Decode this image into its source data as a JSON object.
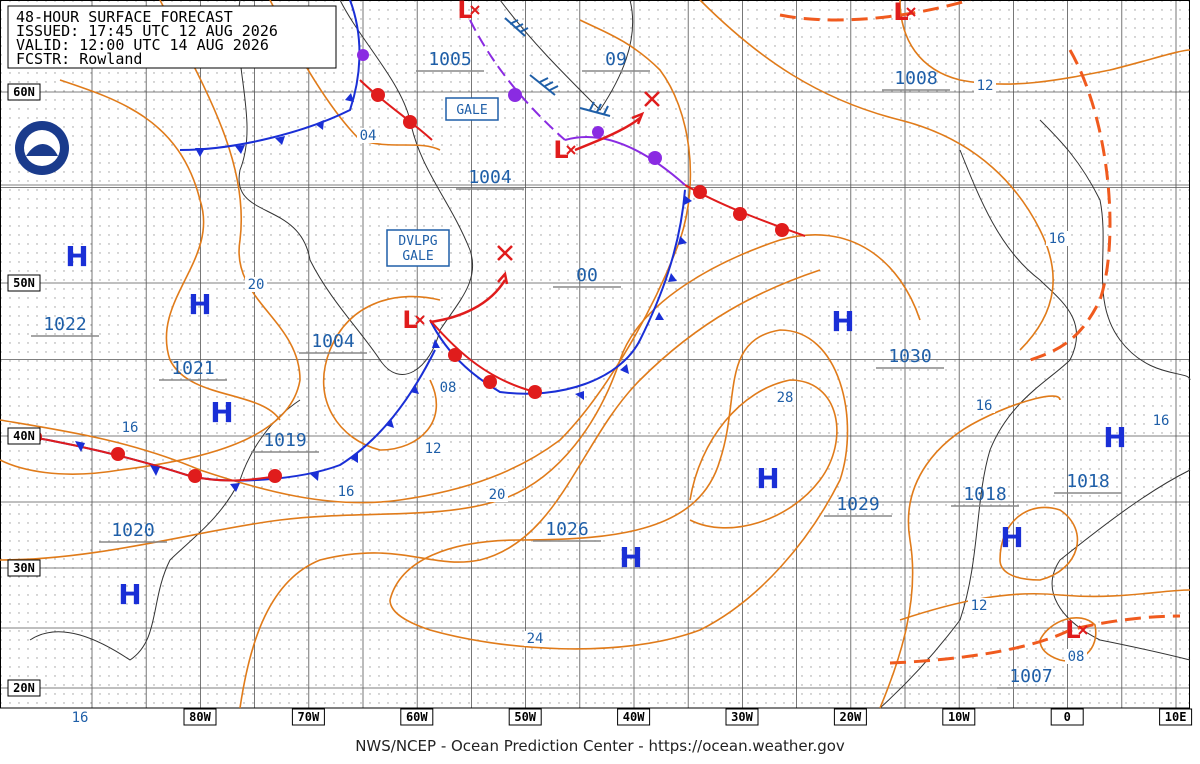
{
  "header": {
    "lines": [
      "48-HOUR SURFACE FORECAST",
      "ISSUED: 17:45 UTC 12 AUG 2026",
      "VALID: 12:00 UTC 14 AUG 2026",
      "FCSTR: Rowland"
    ]
  },
  "latitude_labels": [
    "60N",
    "50N",
    "40N",
    "30N",
    "20N"
  ],
  "longitude_labels": [
    "80W",
    "70W",
    "60W",
    "50W",
    "40W",
    "30W",
    "20W",
    "10W",
    "0",
    "10E"
  ],
  "pressure_labels": [
    "1005",
    "1004",
    "1004",
    "1022",
    "1021",
    "1019",
    "1020",
    "00",
    "09",
    "1008",
    "1030",
    "1026",
    "1029",
    "1018",
    "1018",
    "1007"
  ],
  "isobar_labels": [
    "04",
    "20",
    "16",
    "08",
    "12",
    "16",
    "20",
    "24",
    "28",
    "12",
    "16",
    "16",
    "16",
    "12",
    "08",
    "16"
  ],
  "highs": [
    "H",
    "H",
    "H",
    "H",
    "H",
    "H",
    "H",
    "H",
    "H"
  ],
  "lows": [
    "L",
    "L",
    "L",
    "L",
    "L"
  ],
  "warnings": [
    {
      "lines": [
        "GALE"
      ]
    },
    {
      "lines": [
        "DVLPG",
        "GALE"
      ]
    }
  ],
  "footer": "NWS/NCEP - Ocean Prediction Center - https://ocean.weather.gov"
}
